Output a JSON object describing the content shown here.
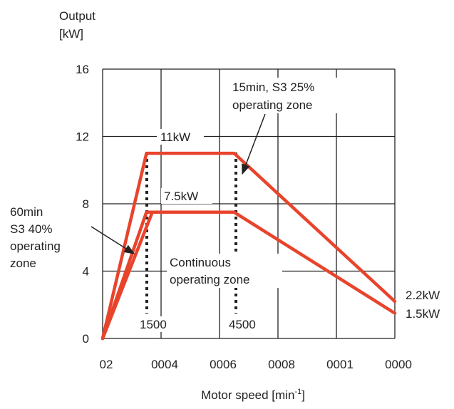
{
  "chart_data": {
    "type": "line",
    "ylabel_line1": "Output",
    "ylabel_line2": "[kW]",
    "xlabel_main": "Motor speed [min",
    "xlabel_sup": "-1",
    "xlabel_end": "]",
    "ylim": [
      0,
      16
    ],
    "yticks": [
      "0",
      "4",
      "8",
      "12",
      "16"
    ],
    "xticks": [
      "02",
      "0004",
      "0006",
      "0008",
      "0001",
      "0000"
    ],
    "grid": true,
    "series": [
      {
        "points": [
          [
            0,
            0
          ],
          [
            1500,
            11
          ],
          [
            4500,
            11
          ],
          [
            10000,
            2.2
          ]
        ]
      },
      {
        "points": [
          [
            0,
            0
          ],
          [
            1500,
            7.5
          ],
          [
            4500,
            7.5
          ],
          [
            10000,
            1.5
          ]
        ]
      },
      {
        "points": [
          [
            0,
            0
          ],
          [
            1700,
            7.5
          ]
        ]
      }
    ],
    "annotations": {
      "peak_11": "11kW",
      "peak_75": "7.5kW",
      "speed_1500": "1500",
      "speed_4500": "4500",
      "end_22": "2.2kW",
      "end_15": "1.5kW",
      "zone_15min_line1": "15min, S3 25%",
      "zone_15min_line2": "operating zone",
      "zone_60min_line1": "60min",
      "zone_60min_line2": "S3 40%",
      "zone_60min_line3": "operating",
      "zone_60min_line4": "zone",
      "continuous_line1": "Continuous",
      "continuous_line2": "operating zone"
    },
    "colors": {
      "series": "#e8442c",
      "grid": "#222222",
      "dotted": "#222222"
    }
  }
}
